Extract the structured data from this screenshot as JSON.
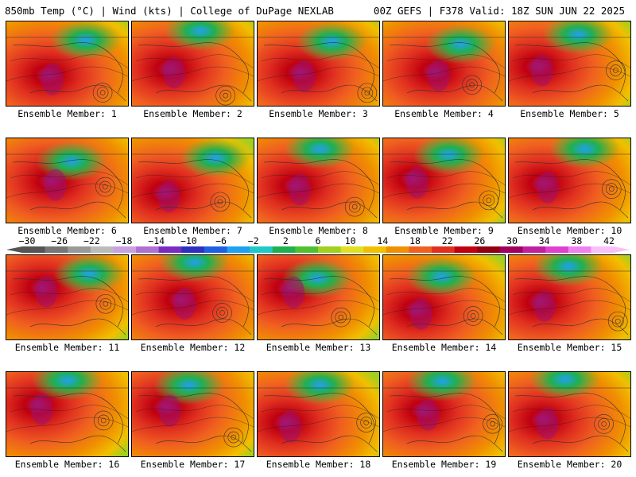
{
  "header": {
    "left_title": "850mb Temp (°C) | Wind (kts) | College of DuPage NEXLAB",
    "right_title": "00Z GEFS | F378 Valid: 18Z SUN JUN 22 2025"
  },
  "colorbar": {
    "labels": [
      "−30",
      "−26",
      "−22",
      "−18",
      "−14",
      "−10",
      "−6",
      "−2",
      "2",
      "6",
      "10",
      "14",
      "18",
      "22",
      "26",
      "30",
      "34",
      "38",
      "42"
    ],
    "colors": [
      "#555555",
      "#777777",
      "#999999",
      "#bbbbbb",
      "#c8a2e0",
      "#b070d0",
      "#7a2cc0",
      "#3030c0",
      "#2060e0",
      "#20a0f0",
      "#20c8c8",
      "#20b050",
      "#50c030",
      "#a0d020",
      "#e0e020",
      "#f0c000",
      "#f09000",
      "#f06020",
      "#e03020",
      "#c00010",
      "#900010",
      "#a00060",
      "#c020a0",
      "#e040d0",
      "#f080f0",
      "#f8c0f8"
    ]
  },
  "panels": [
    {
      "caption": "Ensemble Member: 1"
    },
    {
      "caption": "Ensemble Member: 2"
    },
    {
      "caption": "Ensemble Member: 3"
    },
    {
      "caption": "Ensemble Member: 4"
    },
    {
      "caption": "Ensemble Member: 5"
    },
    {
      "caption": "Ensemble Member: 6"
    },
    {
      "caption": "Ensemble Member: 7"
    },
    {
      "caption": "Ensemble Member: 8"
    },
    {
      "caption": "Ensemble Member: 9"
    },
    {
      "caption": "Ensemble Member: 10"
    },
    {
      "caption": "Ensemble Member: 11"
    },
    {
      "caption": "Ensemble Member: 12"
    },
    {
      "caption": "Ensemble Member: 13"
    },
    {
      "caption": "Ensemble Member: 14"
    },
    {
      "caption": "Ensemble Member: 15"
    },
    {
      "caption": "Ensemble Member: 16"
    },
    {
      "caption": "Ensemble Member: 17"
    },
    {
      "caption": "Ensemble Member: 18"
    },
    {
      "caption": "Ensemble Member: 19"
    },
    {
      "caption": "Ensemble Member: 20"
    }
  ]
}
